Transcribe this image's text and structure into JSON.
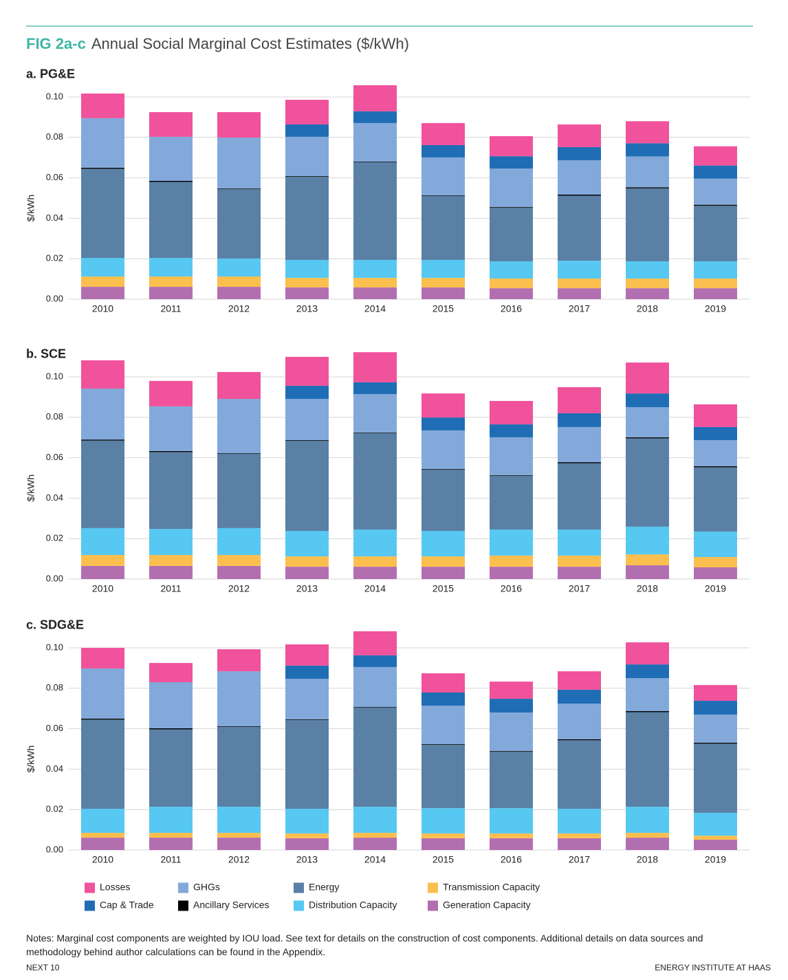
{
  "header": {
    "label": "FIG 2a-c",
    "title": "Annual Social Marginal Cost Estimates ($/kWh)"
  },
  "chart_data": [
    {
      "type": "bar",
      "stacked": true,
      "title": "a. PG&E",
      "y_label": "$/kWh",
      "grid": true,
      "categories": [
        "2010",
        "2011",
        "2012",
        "2013",
        "2014",
        "2015",
        "2016",
        "2017",
        "2018",
        "2019"
      ],
      "ylim": [
        0,
        0.11
      ],
      "yticks": [
        {
          "value": 0,
          "label": "0.00"
        },
        {
          "value": 0.02,
          "label": "0.02"
        },
        {
          "value": 0.04,
          "label": "0.04"
        },
        {
          "value": 0.06,
          "label": "0.06"
        },
        {
          "value": 0.08,
          "label": "0.08"
        },
        {
          "value": 0.1,
          "label": "0.10"
        }
      ],
      "series": [
        {
          "name": "Generation Capacity",
          "color": "#b26fb0",
          "values": [
            0.0061,
            0.0061,
            0.0061,
            0.0058,
            0.0058,
            0.0058,
            0.0054,
            0.0054,
            0.0054,
            0.0054
          ]
        },
        {
          "name": "Transmission Capacity",
          "color": "#fbbf4f",
          "values": [
            0.0051,
            0.0051,
            0.0051,
            0.0047,
            0.0047,
            0.0047,
            0.0048,
            0.0048,
            0.0048,
            0.0048
          ]
        },
        {
          "name": "Distribution Capacity",
          "color": "#57c8f2",
          "values": [
            0.0092,
            0.0092,
            0.0089,
            0.0089,
            0.0089,
            0.0089,
            0.0085,
            0.0088,
            0.0085,
            0.0085
          ]
        },
        {
          "name": "Energy",
          "color": "#5a80a5",
          "values": [
            0.0441,
            0.0376,
            0.0344,
            0.0412,
            0.0483,
            0.0317,
            0.0266,
            0.0322,
            0.0361,
            0.0275
          ]
        },
        {
          "name": "Ancillary Services",
          "color": "#000000",
          "values": [
            0.0005,
            0.0005,
            0.0003,
            0.0003,
            0.0003,
            0.0003,
            0.0003,
            0.0005,
            0.0005,
            0.0005
          ]
        },
        {
          "name": "GHGs",
          "color": "#82a9da",
          "values": [
            0.0245,
            0.0218,
            0.0251,
            0.0194,
            0.0191,
            0.0187,
            0.019,
            0.017,
            0.0153,
            0.0129
          ]
        },
        {
          "name": "Cap & Trade",
          "color": "#1f6db5",
          "values": [
            0,
            0,
            0,
            0.0061,
            0.0058,
            0.0061,
            0.0061,
            0.0065,
            0.0065,
            0.0065
          ]
        },
        {
          "name": "Losses",
          "color": "#f0529c",
          "values": [
            0.0122,
            0.0122,
            0.0126,
            0.0122,
            0.0129,
            0.0109,
            0.0099,
            0.0112,
            0.0109,
            0.0095
          ]
        }
      ]
    },
    {
      "type": "bar",
      "stacked": true,
      "title": "b. SCE",
      "y_label": "$/kWh",
      "grid": true,
      "categories": [
        "2010",
        "2011",
        "2012",
        "2013",
        "2014",
        "2015",
        "2016",
        "2017",
        "2018",
        "2019"
      ],
      "ylim": [
        0,
        0.11
      ],
      "yticks": [
        {
          "value": 0,
          "label": "0.00"
        },
        {
          "value": 0.02,
          "label": "0.02"
        },
        {
          "value": 0.04,
          "label": "0.04"
        },
        {
          "value": 0.06,
          "label": "0.06"
        },
        {
          "value": 0.08,
          "label": "0.08"
        },
        {
          "value": 0.1,
          "label": "0.10"
        }
      ],
      "series": [
        {
          "name": "Generation Capacity",
          "color": "#b26fb0",
          "values": [
            0.0065,
            0.0065,
            0.0065,
            0.0061,
            0.0061,
            0.0061,
            0.0061,
            0.0061,
            0.0068,
            0.0058
          ]
        },
        {
          "name": "Transmission Capacity",
          "color": "#fbbf4f",
          "values": [
            0.0054,
            0.0054,
            0.0054,
            0.0051,
            0.0051,
            0.0051,
            0.0055,
            0.0055,
            0.0054,
            0.0051
          ]
        },
        {
          "name": "Distribution Capacity",
          "color": "#57c8f2",
          "values": [
            0.0133,
            0.0129,
            0.0133,
            0.0126,
            0.0133,
            0.0126,
            0.0129,
            0.0129,
            0.0137,
            0.0126
          ]
        },
        {
          "name": "Energy",
          "color": "#5a80a5",
          "values": [
            0.0433,
            0.038,
            0.0367,
            0.0446,
            0.0476,
            0.0303,
            0.0266,
            0.0328,
            0.0437,
            0.0318
          ]
        },
        {
          "name": "Ancillary Services",
          "color": "#000000",
          "values": [
            0.0005,
            0.0005,
            0.0003,
            0.0003,
            0.0003,
            0.0003,
            0.0003,
            0.0005,
            0.0005,
            0.0005
          ]
        },
        {
          "name": "GHGs",
          "color": "#82a9da",
          "values": [
            0.0252,
            0.0221,
            0.0269,
            0.0204,
            0.0191,
            0.0191,
            0.0187,
            0.0174,
            0.0149,
            0.0129
          ]
        },
        {
          "name": "Cap & Trade",
          "color": "#1f6db5",
          "values": [
            0,
            0,
            0,
            0.0065,
            0.0058,
            0.0064,
            0.0064,
            0.0068,
            0.0068,
            0.0065
          ]
        },
        {
          "name": "Losses",
          "color": "#f0529c",
          "values": [
            0.014,
            0.0126,
            0.0133,
            0.0143,
            0.0149,
            0.0119,
            0.0116,
            0.0129,
            0.0153,
            0.0112
          ]
        }
      ]
    },
    {
      "type": "bar",
      "stacked": true,
      "title": "c. SDG&E",
      "y_label": "$/kWh",
      "grid": true,
      "categories": [
        "2010",
        "2011",
        "2012",
        "2013",
        "2014",
        "2015",
        "2016",
        "2017",
        "2018",
        "2019"
      ],
      "ylim": [
        0,
        0.11
      ],
      "yticks": [
        {
          "value": 0,
          "label": "0.00"
        },
        {
          "value": 0.02,
          "label": "0.02"
        },
        {
          "value": 0.04,
          "label": "0.04"
        },
        {
          "value": 0.06,
          "label": "0.06"
        },
        {
          "value": 0.08,
          "label": "0.08"
        },
        {
          "value": 0.1,
          "label": "0.10"
        }
      ],
      "series": [
        {
          "name": "Generation Capacity",
          "color": "#b26fb0",
          "values": [
            0.0061,
            0.0061,
            0.0061,
            0.0058,
            0.0061,
            0.0058,
            0.0058,
            0.0058,
            0.0061,
            0.0051
          ]
        },
        {
          "name": "Transmission Capacity",
          "color": "#fbbf4f",
          "values": [
            0.0024,
            0.0024,
            0.0024,
            0.0024,
            0.0024,
            0.0024,
            0.0024,
            0.0024,
            0.0024,
            0.002
          ]
        },
        {
          "name": "Distribution Capacity",
          "color": "#57c8f2",
          "values": [
            0.0119,
            0.0129,
            0.0129,
            0.0122,
            0.0129,
            0.0125,
            0.0125,
            0.0122,
            0.0129,
            0.0113
          ]
        },
        {
          "name": "Energy",
          "color": "#5a80a5",
          "values": [
            0.0441,
            0.0383,
            0.0395,
            0.0439,
            0.049,
            0.0314,
            0.028,
            0.0339,
            0.0468,
            0.0342
          ]
        },
        {
          "name": "Ancillary Services",
          "color": "#000000",
          "values": [
            0.0005,
            0.0005,
            0.0003,
            0.0003,
            0.0003,
            0.0003,
            0.0003,
            0.0005,
            0.0005,
            0.0005
          ]
        },
        {
          "name": "GHGs",
          "color": "#82a9da",
          "values": [
            0.0248,
            0.0228,
            0.0272,
            0.0201,
            0.0198,
            0.019,
            0.019,
            0.0176,
            0.0163,
            0.0139
          ]
        },
        {
          "name": "Cap & Trade",
          "color": "#1f6db5",
          "values": [
            0,
            0,
            0,
            0.0065,
            0.0058,
            0.0065,
            0.0068,
            0.0069,
            0.0068,
            0.0068
          ]
        },
        {
          "name": "Losses",
          "color": "#f0529c",
          "values": [
            0.0102,
            0.0095,
            0.0109,
            0.0105,
            0.0119,
            0.0095,
            0.0085,
            0.0091,
            0.0109,
            0.0078
          ]
        }
      ]
    }
  ],
  "notes": "Notes: Marginal cost components are weighted by IOU load. See text for details on the construction of cost components. Additional details on data sources and methodology behind author calculations can be found in the Appendix.",
  "footer": {
    "left": "NEXT 10",
    "right": "ENERGY INSTITUTE AT HAAS"
  }
}
